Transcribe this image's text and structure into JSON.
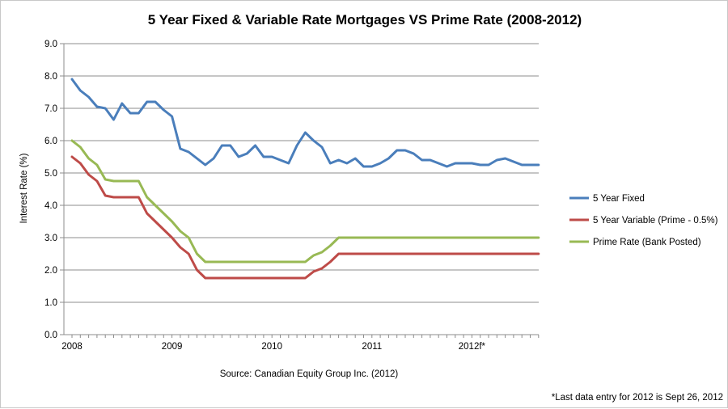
{
  "chart_data": {
    "type": "line",
    "title": "5 Year Fixed & Variable Rate Mortgages VS Prime Rate (2008-2012)",
    "xlabel": "Source: Canadian Equity Group Inc. (2012)",
    "ylabel": "Interest Rate (%)",
    "ylim": [
      0,
      9
    ],
    "yticks": [
      "0.0",
      "1.0",
      "2.0",
      "3.0",
      "4.0",
      "5.0",
      "6.0",
      "7.0",
      "8.0",
      "9.0"
    ],
    "xticks": [
      {
        "label": "2008",
        "at": 0
      },
      {
        "label": "2009",
        "at": 12
      },
      {
        "label": "2010",
        "at": 24
      },
      {
        "label": "2011",
        "at": 36
      },
      {
        "label": "2012f*",
        "at": 48
      }
    ],
    "grid": true,
    "legend_position": "right",
    "footnote": "*Last data entry for 2012 is Sept 26, 2012",
    "series": [
      {
        "name": "5 Year Fixed",
        "color": "#4a7ebb",
        "values": [
          7.9,
          7.55,
          7.35,
          7.05,
          7.0,
          6.65,
          7.15,
          6.85,
          6.85,
          7.2,
          7.2,
          6.95,
          6.75,
          5.75,
          5.65,
          5.45,
          5.25,
          5.45,
          5.85,
          5.85,
          5.5,
          5.6,
          5.85,
          5.5,
          5.5,
          5.4,
          5.3,
          5.85,
          6.25,
          6.0,
          5.8,
          5.3,
          5.4,
          5.3,
          5.45,
          5.2,
          5.2,
          5.3,
          5.45,
          5.7,
          5.7,
          5.6,
          5.4,
          5.4,
          5.3,
          5.2,
          5.3,
          5.3,
          5.3,
          5.25,
          5.25,
          5.4,
          5.45,
          5.35,
          5.25,
          5.25,
          5.25
        ]
      },
      {
        "name": "5 Year Variable (Prime - 0.5%)",
        "color": "#be4b48",
        "values": [
          5.5,
          5.3,
          4.95,
          4.75,
          4.3,
          4.25,
          4.25,
          4.25,
          4.25,
          3.75,
          3.5,
          3.25,
          3.0,
          2.7,
          2.5,
          2.0,
          1.75,
          1.75,
          1.75,
          1.75,
          1.75,
          1.75,
          1.75,
          1.75,
          1.75,
          1.75,
          1.75,
          1.75,
          1.75,
          1.95,
          2.05,
          2.25,
          2.5,
          2.5,
          2.5,
          2.5,
          2.5,
          2.5,
          2.5,
          2.5,
          2.5,
          2.5,
          2.5,
          2.5,
          2.5,
          2.5,
          2.5,
          2.5,
          2.5,
          2.5,
          2.5,
          2.5,
          2.5,
          2.5,
          2.5,
          2.5,
          2.5
        ]
      },
      {
        "name": "Prime Rate (Bank Posted)",
        "color": "#98b954",
        "values": [
          6.0,
          5.8,
          5.45,
          5.25,
          4.8,
          4.75,
          4.75,
          4.75,
          4.75,
          4.25,
          4.0,
          3.75,
          3.5,
          3.2,
          3.0,
          2.5,
          2.25,
          2.25,
          2.25,
          2.25,
          2.25,
          2.25,
          2.25,
          2.25,
          2.25,
          2.25,
          2.25,
          2.25,
          2.25,
          2.45,
          2.55,
          2.75,
          3.0,
          3.0,
          3.0,
          3.0,
          3.0,
          3.0,
          3.0,
          3.0,
          3.0,
          3.0,
          3.0,
          3.0,
          3.0,
          3.0,
          3.0,
          3.0,
          3.0,
          3.0,
          3.0,
          3.0,
          3.0,
          3.0,
          3.0,
          3.0,
          3.0
        ]
      }
    ]
  }
}
